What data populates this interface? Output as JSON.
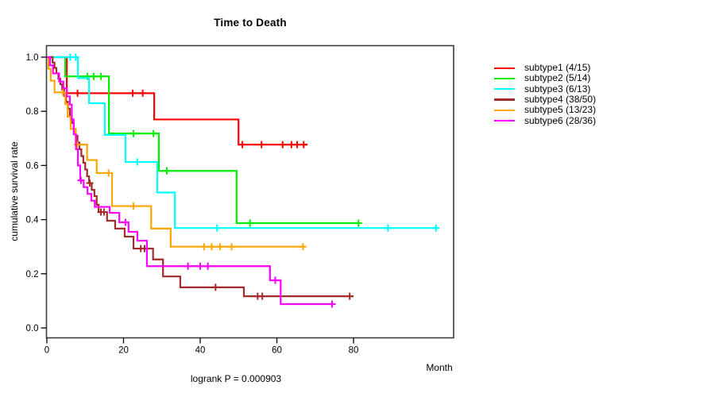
{
  "chart_data": {
    "type": "line",
    "variant": "kaplan-meier-step",
    "title": "Time to Death",
    "xlabel": "Month",
    "ylabel": "cumulative survival rate",
    "annotation": "logrank P = 0.000903",
    "xlim": [
      0,
      106
    ],
    "ylim": [
      0,
      1
    ],
    "grid": false,
    "legend_position": "right",
    "x_ticks": {
      "values": [
        0,
        20,
        40,
        60,
        80
      ],
      "labels": [
        "0",
        "20",
        "40",
        "60",
        "80"
      ]
    },
    "y_ticks": {
      "values": [
        0.0,
        0.2,
        0.4,
        0.6,
        0.8,
        1.0
      ],
      "labels": [
        "0.0",
        "0.2",
        "0.4",
        "0.6",
        "0.8",
        "1.0"
      ]
    },
    "series": [
      {
        "name": "subtype1",
        "legend_label": "subtype1 (4/15)",
        "color": "#FF0000",
        "steps": [
          [
            0,
            1.0
          ],
          [
            5.2,
            0.867
          ],
          [
            28,
            0.77
          ],
          [
            50,
            0.677
          ]
        ],
        "end": 68,
        "censors": [
          [
            8,
            0.867
          ],
          [
            22.4,
            0.867
          ],
          [
            25,
            0.867
          ],
          [
            51,
            0.677
          ],
          [
            56,
            0.677
          ],
          [
            61.5,
            0.677
          ],
          [
            63.8,
            0.677
          ],
          [
            65.3,
            0.677
          ],
          [
            67,
            0.677
          ]
        ]
      },
      {
        "name": "subtype2",
        "legend_label": "subtype2 (5/14)",
        "color": "#00EE00",
        "steps": [
          [
            0,
            1.0
          ],
          [
            4.8,
            0.929
          ],
          [
            16.2,
            0.718
          ],
          [
            29.2,
            0.58
          ],
          [
            49.5,
            0.387
          ]
        ],
        "end": 81.5,
        "censors": [
          [
            10.6,
            0.929
          ],
          [
            12.2,
            0.929
          ],
          [
            14.1,
            0.929
          ],
          [
            22.6,
            0.718
          ],
          [
            27.8,
            0.718
          ],
          [
            31.3,
            0.58
          ],
          [
            53,
            0.387
          ],
          [
            81.3,
            0.387
          ]
        ]
      },
      {
        "name": "subtype3",
        "legend_label": "subtype3 (6/13)",
        "color": "#00FFFF",
        "steps": [
          [
            0,
            1.0
          ],
          [
            8.1,
            0.923
          ],
          [
            11,
            0.83
          ],
          [
            15.1,
            0.713
          ],
          [
            20.5,
            0.613
          ],
          [
            28.8,
            0.5
          ],
          [
            33.4,
            0.369
          ]
        ],
        "end": 102,
        "censors": [
          [
            6.1,
            1.0
          ],
          [
            7.5,
            1.0
          ],
          [
            23.6,
            0.613
          ],
          [
            44.4,
            0.369
          ],
          [
            89,
            0.369
          ],
          [
            101.5,
            0.369
          ]
        ]
      },
      {
        "name": "subtype4",
        "legend_label": "subtype4 (38/50)",
        "color": "#A52A2A",
        "steps": [
          [
            0,
            1.0
          ],
          [
            1.5,
            0.98
          ],
          [
            2,
            0.96
          ],
          [
            2.5,
            0.94
          ],
          [
            3,
            0.92
          ],
          [
            3.5,
            0.9
          ],
          [
            4,
            0.88
          ],
          [
            4.5,
            0.857
          ],
          [
            5,
            0.835
          ],
          [
            5.5,
            0.81
          ],
          [
            6,
            0.78
          ],
          [
            6.5,
            0.757
          ],
          [
            7,
            0.735
          ],
          [
            7.5,
            0.71
          ],
          [
            8,
            0.685
          ],
          [
            8.5,
            0.66
          ],
          [
            9,
            0.635
          ],
          [
            9.5,
            0.61
          ],
          [
            10,
            0.585
          ],
          [
            10.5,
            0.56
          ],
          [
            11,
            0.535
          ],
          [
            11.7,
            0.51
          ],
          [
            12.4,
            0.487
          ],
          [
            13,
            0.455
          ],
          [
            13.5,
            0.428
          ],
          [
            15.7,
            0.396
          ],
          [
            17.8,
            0.367
          ],
          [
            20.3,
            0.337
          ],
          [
            22.6,
            0.293
          ],
          [
            27.7,
            0.253
          ],
          [
            30.3,
            0.19
          ],
          [
            34.8,
            0.15
          ],
          [
            51.4,
            0.117
          ]
        ],
        "end": 80,
        "censors": [
          [
            11.2,
            0.535
          ],
          [
            14.1,
            0.428
          ],
          [
            14.9,
            0.428
          ],
          [
            24.5,
            0.293
          ],
          [
            25.5,
            0.293
          ],
          [
            44,
            0.15
          ],
          [
            55,
            0.117
          ],
          [
            56.2,
            0.117
          ],
          [
            79,
            0.117
          ]
        ]
      },
      {
        "name": "subtype5",
        "legend_label": "subtype5 (13/23)",
        "color": "#FFA500",
        "steps": [
          [
            0,
            1.0
          ],
          [
            0.4,
            0.957
          ],
          [
            1,
            0.913
          ],
          [
            2,
            0.87
          ],
          [
            4.8,
            0.826
          ],
          [
            5.4,
            0.78
          ],
          [
            6.2,
            0.735
          ],
          [
            7.5,
            0.677
          ],
          [
            10.5,
            0.62
          ],
          [
            13,
            0.572
          ],
          [
            17,
            0.45
          ],
          [
            27.2,
            0.367
          ],
          [
            32.3,
            0.3
          ]
        ],
        "end": 67,
        "censors": [
          [
            4.2,
            0.87
          ],
          [
            7.9,
            0.677
          ],
          [
            16.1,
            0.572
          ],
          [
            22.6,
            0.45
          ],
          [
            41,
            0.3
          ],
          [
            43,
            0.3
          ],
          [
            45.2,
            0.3
          ],
          [
            48.2,
            0.3
          ],
          [
            66.8,
            0.3
          ]
        ]
      },
      {
        "name": "subtype6",
        "legend_label": "subtype6 (28/36)",
        "color": "#FF00FF",
        "steps": [
          [
            0,
            1.0
          ],
          [
            0.8,
            0.97
          ],
          [
            1.6,
            0.94
          ],
          [
            3.2,
            0.91
          ],
          [
            4.3,
            0.885
          ],
          [
            5.2,
            0.855
          ],
          [
            6,
            0.825
          ],
          [
            6.5,
            0.77
          ],
          [
            7,
            0.715
          ],
          [
            7.6,
            0.66
          ],
          [
            8.1,
            0.6
          ],
          [
            8.7,
            0.545
          ],
          [
            9.6,
            0.52
          ],
          [
            10.6,
            0.495
          ],
          [
            11.6,
            0.47
          ],
          [
            12.5,
            0.447
          ],
          [
            16.4,
            0.425
          ],
          [
            18.9,
            0.39
          ],
          [
            21.3,
            0.355
          ],
          [
            23.6,
            0.322
          ],
          [
            26.1,
            0.228
          ],
          [
            58.2,
            0.176
          ],
          [
            61,
            0.088
          ]
        ],
        "end": 74.8,
        "censors": [
          [
            8.9,
            0.545
          ],
          [
            20.5,
            0.39
          ],
          [
            36.8,
            0.228
          ],
          [
            40,
            0.228
          ],
          [
            42,
            0.228
          ],
          [
            59.6,
            0.176
          ],
          [
            74.4,
            0.088
          ]
        ]
      }
    ]
  }
}
